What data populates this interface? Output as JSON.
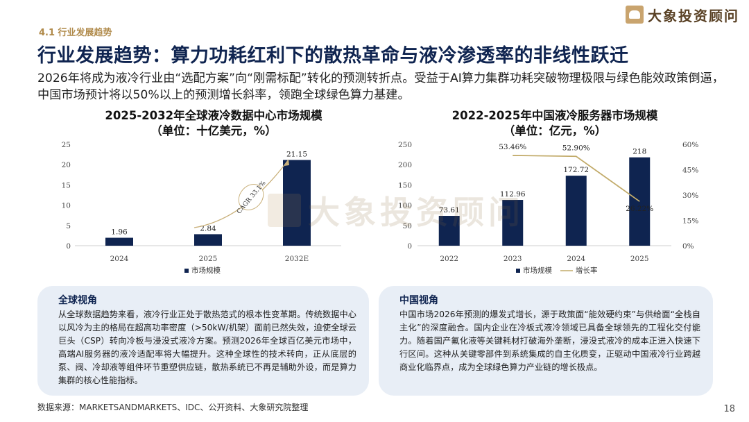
{
  "brand": {
    "name": "大象投资顾问"
  },
  "header": {
    "section": "4.1 行业发展趋势",
    "title": "行业发展趋势：算力功耗红利下的散热革命与液冷渗透率的非线性跃迁",
    "intro": "2026年将成为液冷行业由“选配方案”向“刚需标配”转化的预测转折点。受益于AI算力集群功耗突破物理极限与绿色能效政策倒逼，中国市场预计将以50%以上的预测增长斜率，领跑全球绿色算力基建。"
  },
  "chart_data": [
    {
      "type": "bar",
      "title": "2025-2032年全球液冷数据中心市场规模",
      "subtitle": "（单位：十亿美元，%）",
      "categories": [
        "2024",
        "2025",
        "2032E"
      ],
      "series": [
        {
          "name": "市场规模",
          "values": [
            1.96,
            2.84,
            21.15
          ]
        }
      ],
      "data_labels": [
        "1.96",
        "2.84",
        "21.15"
      ],
      "ylim": [
        0,
        25
      ],
      "yticks": [
        "0",
        "5",
        "10",
        "15",
        "20",
        "25"
      ],
      "annotation": "CAGR 33.1%",
      "legend": "bottom",
      "bar_color": "#0f2450",
      "grid": false
    },
    {
      "type": "bar",
      "title": "2022-2025年中国液冷服务器市场规模",
      "subtitle": "（单位：亿元，%）",
      "categories": [
        "2022",
        "2023",
        "2024",
        "2025"
      ],
      "series": [
        {
          "name": "市场规模",
          "type": "bar",
          "axis": "left",
          "values": [
            73.61,
            112.96,
            172.72,
            218
          ]
        },
        {
          "name": "增长率",
          "type": "line",
          "axis": "right",
          "values": [
            null,
            53.46,
            52.9,
            26.22
          ]
        }
      ],
      "bar_labels": [
        "73.61",
        "112.96",
        "172.72",
        "218"
      ],
      "line_labels": [
        "53.46%",
        "52.90%",
        "26.22%"
      ],
      "ylim": [
        0,
        250
      ],
      "yticks": [
        "0",
        "50",
        "100",
        "150",
        "200",
        "250"
      ],
      "y2lim": [
        0,
        60
      ],
      "y2ticks": [
        "0%",
        "15%",
        "30%",
        "45%",
        "60%"
      ],
      "legend": "bottom",
      "bar_color": "#0f2450",
      "line_color": "#c2ab6a",
      "grid": false
    }
  ],
  "panels": {
    "global": {
      "heading": "全球视角",
      "body": "从全球数据趋势来看，液冷行业正处于散热范式的根本性变革期。传统数据中心以风冷为主的格局在超高功率密度（>50kW/机架）面前已然失效，迫使全球云巨头（CSP）转向冷板与浸没式液冷方案。预测2026年全球百亿美元市场中，高端AI服务器的液冷适配率将大幅提升。这种全球性的技术转向，正从底层的泵、阀、冷却液等组件环节重塑供应链，散热系统已不再是辅助外设，而是算力集群的核心性能指标。"
    },
    "china": {
      "heading": "中国视角",
      "body": "中国市场2026年预测的爆发式增长，源于政策面“能效硬约束”与供给面“全栈自主化”的深度融合。国内企业在冷板式液冷领域已具备全球领先的工程化交付能力。随着国产氟化液等关键耗材打破海外垄断，浸没式液冷的成本正进入快速下行区间。这种从关键零部件到系统集成的自主化质变，正驱动中国液冷行业跨越商业化临界点，成为全球绿色算力产业链的增长极点。"
    }
  },
  "footer": {
    "source": "数据来源：MARKETSANDMARKETS、IDC、公开资料、大象研究院整理",
    "page": "18"
  }
}
